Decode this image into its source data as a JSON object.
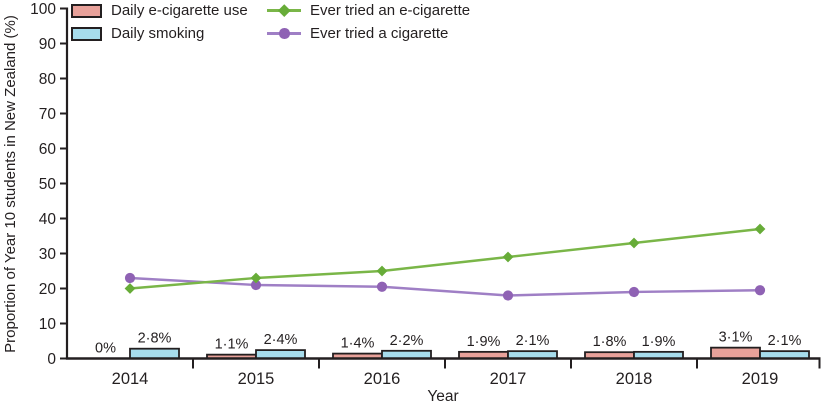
{
  "colors": {
    "axis_and_text": "#231f20",
    "background": "#ffffff"
  },
  "chart_data": {
    "type": "bar+line",
    "title": "",
    "xlabel": "Year",
    "ylabel": "Proportion of Year 10 students in New Zealand (%)",
    "ylim": [
      0,
      100
    ],
    "ytick_step": 10,
    "grid": false,
    "legend_position": "top-left",
    "categories": [
      "2014",
      "2015",
      "2016",
      "2017",
      "2018",
      "2019"
    ],
    "bar_series": [
      {
        "key": "daily-e-cigarette-use",
        "name": "Daily e-cigarette use",
        "color": "#e8a19a",
        "border_color": "#231f20",
        "values": [
          0,
          1.1,
          1.4,
          1.9,
          1.8,
          3.1
        ],
        "labels": [
          "0%",
          "1·1%",
          "1·4%",
          "1·9%",
          "1·8%",
          "3·1%"
        ]
      },
      {
        "key": "daily-smoking",
        "name": "Daily smoking",
        "color": "#a7dcec",
        "border_color": "#231f20",
        "values": [
          2.8,
          2.4,
          2.2,
          2.1,
          1.9,
          2.1
        ],
        "labels": [
          "2·8%",
          "2·4%",
          "2·2%",
          "2·1%",
          "1·9%",
          "2·1%"
        ]
      }
    ],
    "line_series": [
      {
        "key": "ever-tried-an-e-cigarette",
        "name": "Ever tried an e-cigarette",
        "color": "#7ab648",
        "marker_color": "#67ac38",
        "marker": "diamond",
        "values": [
          20,
          23,
          25,
          29,
          33,
          37
        ]
      },
      {
        "key": "ever-tried-a-cigarette",
        "name": "Ever tried a cigarette",
        "color": "#9f7fc5",
        "marker_color": "#8f62b4",
        "marker": "circle",
        "values": [
          23,
          21,
          20.5,
          18,
          19,
          19.5
        ]
      }
    ]
  }
}
